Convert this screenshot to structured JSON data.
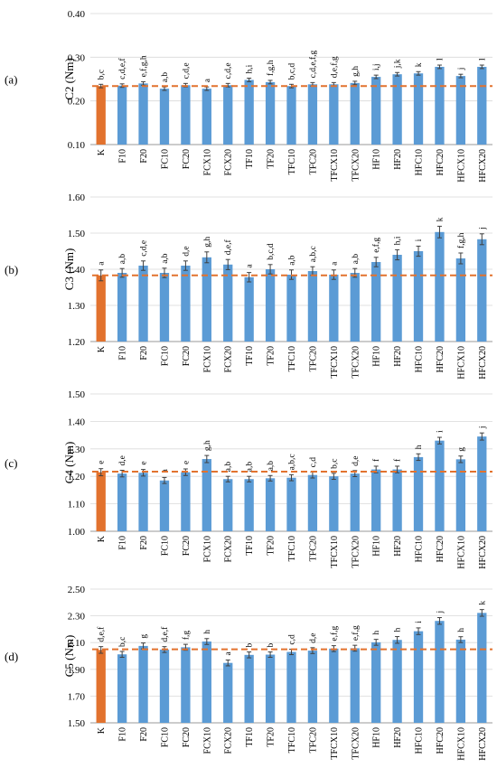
{
  "colors": {
    "control": "#E2722E",
    "bar": "#5B9BD5",
    "error": "#404040",
    "refline": "#E2722E",
    "grid": "#D9D9D9"
  },
  "categories": [
    "K",
    "F10",
    "F20",
    "FC10",
    "FC20",
    "FCX10",
    "FCX20",
    "TF10",
    "TF20",
    "TFC10",
    "TFC20",
    "TFCX10",
    "TFCX20",
    "HF10",
    "HF20",
    "HFC10",
    "HFC20",
    "HFCX10",
    "HFCX20"
  ],
  "chart_data": [
    {
      "type": "bar",
      "panel_label": "(a)",
      "ylabel": "C2 (Nm)",
      "ylim": [
        0.1,
        0.4
      ],
      "yticks": [
        "0.10",
        "0.20",
        "0.30",
        "0.40"
      ],
      "ytick_values": [
        0.1,
        0.2,
        0.3,
        0.4
      ],
      "values": [
        0.234,
        0.235,
        0.24,
        0.228,
        0.236,
        0.228,
        0.236,
        0.248,
        0.243,
        0.234,
        0.238,
        0.238,
        0.241,
        0.255,
        0.261,
        0.263,
        0.278,
        0.257,
        0.278
      ],
      "errors": [
        0.004,
        0.004,
        0.004,
        0.004,
        0.004,
        0.004,
        0.004,
        0.004,
        0.004,
        0.004,
        0.004,
        0.004,
        0.004,
        0.004,
        0.004,
        0.004,
        0.004,
        0.004,
        0.004
      ],
      "labels": [
        "b,c",
        "c,d,e,f",
        "e,f,g,h",
        "a,b",
        "c,d,e",
        "a",
        "c,d,e",
        "h,i",
        "f,g,h",
        "b,c,d",
        "c,d,e,f,g",
        "d,e,f,g",
        "g,h",
        "i,j",
        "j,k",
        "k",
        "l",
        "j",
        "l"
      ],
      "reference": 0.234
    },
    {
      "type": "bar",
      "panel_label": "(b)",
      "ylabel": "C3 (Nm)",
      "ylim": [
        1.2,
        1.6
      ],
      "yticks": [
        "1.20",
        "1.30",
        "1.40",
        "1.50",
        "1.60"
      ],
      "ytick_values": [
        1.2,
        1.3,
        1.4,
        1.5,
        1.6
      ],
      "values": [
        1.383,
        1.39,
        1.41,
        1.39,
        1.41,
        1.433,
        1.413,
        1.378,
        1.4,
        1.385,
        1.395,
        1.385,
        1.39,
        1.42,
        1.44,
        1.45,
        1.503,
        1.43,
        1.483
      ],
      "errors": [
        0.015,
        0.012,
        0.013,
        0.013,
        0.013,
        0.015,
        0.014,
        0.013,
        0.013,
        0.013,
        0.012,
        0.013,
        0.012,
        0.013,
        0.014,
        0.014,
        0.016,
        0.015,
        0.015
      ],
      "labels": [
        "a",
        "a,b",
        "c,d,e",
        "a,b",
        "d,e",
        "g,h",
        "d,e,f",
        "a",
        "b,c,d",
        "a,b",
        "a,b,c",
        "a",
        "a,b",
        "e,f,g",
        "h,i",
        "i",
        "k",
        "f,g,h",
        "j"
      ],
      "reference": 1.383
    },
    {
      "type": "bar",
      "panel_label": "(c)",
      "ylabel": "C4 (Nm)",
      "ylim": [
        1.0,
        1.5
      ],
      "yticks": [
        "1.00",
        "1.10",
        "1.20",
        "1.30",
        "1.40",
        "1.50"
      ],
      "ytick_values": [
        1.0,
        1.1,
        1.2,
        1.3,
        1.4,
        1.5
      ],
      "values": [
        1.215,
        1.21,
        1.213,
        1.185,
        1.215,
        1.263,
        1.19,
        1.19,
        1.193,
        1.195,
        1.205,
        1.2,
        1.21,
        1.225,
        1.225,
        1.27,
        1.33,
        1.262,
        1.345
      ],
      "errors": [
        0.013,
        0.012,
        0.012,
        0.011,
        0.012,
        0.013,
        0.01,
        0.01,
        0.01,
        0.011,
        0.011,
        0.011,
        0.011,
        0.012,
        0.012,
        0.012,
        0.012,
        0.012,
        0.013
      ],
      "labels": [
        "e",
        "d,e",
        "e",
        "a",
        "e",
        "g,h",
        "a,b",
        "a,b",
        "a,b",
        "a,b,c",
        "c,d",
        "b,c",
        "d,e",
        "f",
        "f",
        "h",
        "i",
        "g",
        "j"
      ],
      "reference": 1.217
    },
    {
      "type": "bar",
      "panel_label": "(d)",
      "ylabel": "C5 (Nm)",
      "ylim": [
        1.5,
        2.5
      ],
      "yticks": [
        "1.50",
        "1.70",
        "1.90",
        "2.10",
        "2.30",
        "2.50"
      ],
      "ytick_values": [
        1.5,
        1.7,
        1.9,
        2.1,
        2.3,
        2.5
      ],
      "values": [
        2.045,
        2.012,
        2.075,
        2.048,
        2.065,
        2.108,
        1.948,
        2.008,
        2.01,
        2.03,
        2.04,
        2.055,
        2.058,
        2.102,
        2.12,
        2.185,
        2.262,
        2.122,
        2.322
      ],
      "errors": [
        0.025,
        0.022,
        0.022,
        0.022,
        0.022,
        0.022,
        0.022,
        0.022,
        0.02,
        0.02,
        0.022,
        0.022,
        0.022,
        0.022,
        0.025,
        0.025,
        0.025,
        0.022,
        0.025
      ],
      "labels": [
        "d,e,f",
        "b,c",
        "g",
        "d,e,f",
        "f,g",
        "h",
        "a",
        "b",
        "b",
        "c,d",
        "d,e",
        "e,f,g",
        "e,f,g",
        "h",
        "h",
        "i",
        "j",
        "h",
        "k"
      ],
      "reference": 2.05
    }
  ]
}
